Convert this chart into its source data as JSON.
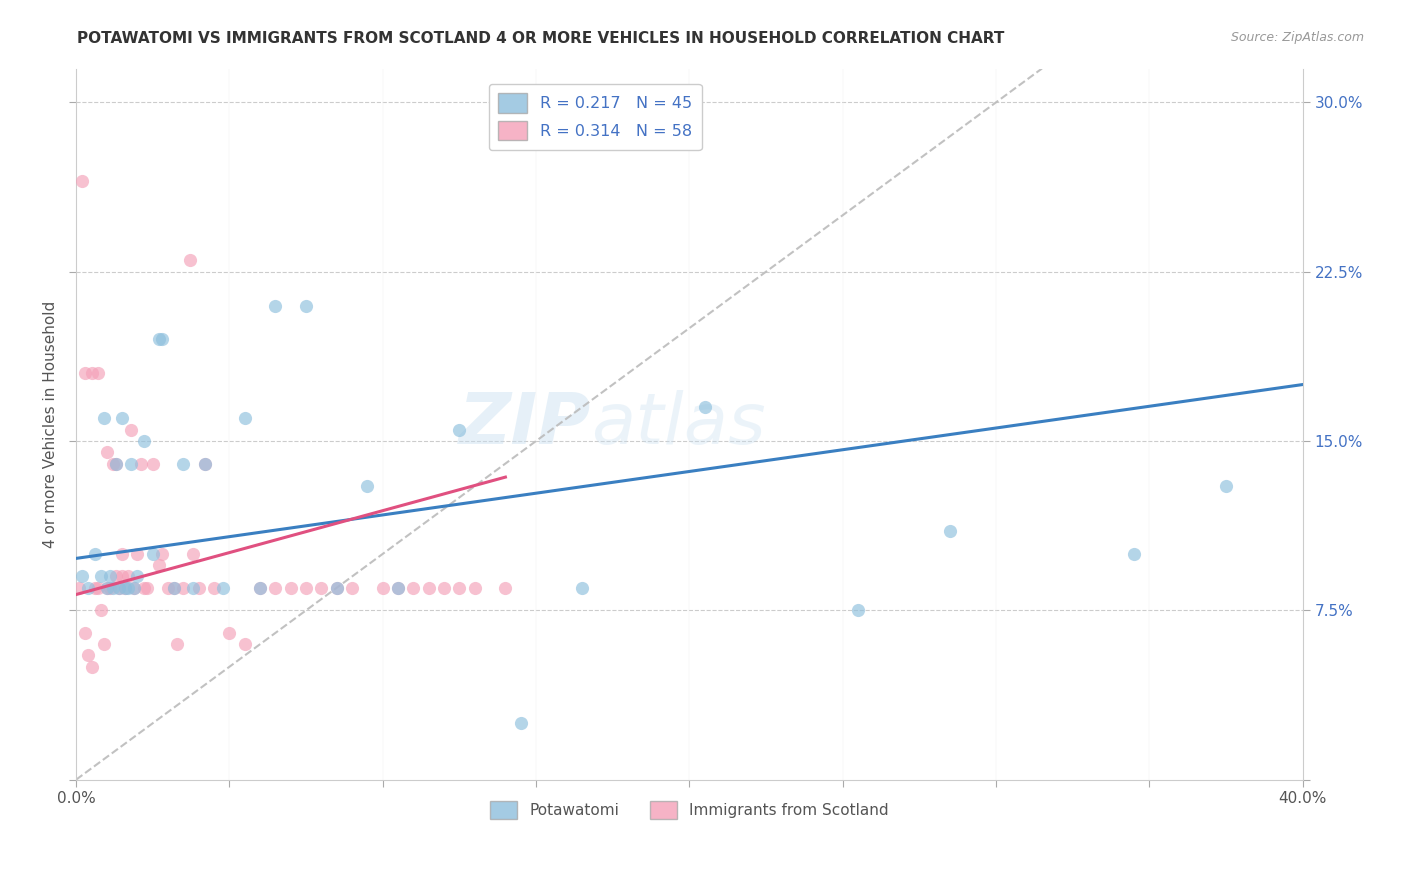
{
  "title": "POTAWATOMI VS IMMIGRANTS FROM SCOTLAND 4 OR MORE VEHICLES IN HOUSEHOLD CORRELATION CHART",
  "source": "Source: ZipAtlas.com",
  "ylabel": "4 or more Vehicles in Household",
  "xlim": [
    0.0,
    0.4
  ],
  "ylim": [
    0.0,
    0.315
  ],
  "color_blue": "#8dbfdd",
  "color_pink": "#f4a0b8",
  "color_trend_blue": "#3a7fc1",
  "color_trend_pink": "#e05080",
  "scatter_alpha": 0.65,
  "scatter_size": 90,
  "blue_x": [
    0.002,
    0.004,
    0.006,
    0.008,
    0.009,
    0.01,
    0.011,
    0.012,
    0.013,
    0.014,
    0.015,
    0.016,
    0.017,
    0.018,
    0.019,
    0.02,
    0.022,
    0.025,
    0.027,
    0.028,
    0.032,
    0.035,
    0.038,
    0.042,
    0.048,
    0.055,
    0.06,
    0.065,
    0.075,
    0.085,
    0.095,
    0.105,
    0.125,
    0.145,
    0.165,
    0.205,
    0.255,
    0.285,
    0.345,
    0.375
  ],
  "blue_y": [
    0.09,
    0.085,
    0.1,
    0.09,
    0.16,
    0.085,
    0.09,
    0.085,
    0.14,
    0.085,
    0.16,
    0.085,
    0.085,
    0.14,
    0.085,
    0.09,
    0.15,
    0.1,
    0.195,
    0.195,
    0.085,
    0.14,
    0.085,
    0.14,
    0.085,
    0.16,
    0.085,
    0.21,
    0.21,
    0.085,
    0.13,
    0.085,
    0.155,
    0.025,
    0.085,
    0.165,
    0.075,
    0.11,
    0.1,
    0.13
  ],
  "pink_x": [
    0.001,
    0.002,
    0.003,
    0.003,
    0.004,
    0.005,
    0.005,
    0.006,
    0.007,
    0.007,
    0.008,
    0.009,
    0.01,
    0.01,
    0.011,
    0.012,
    0.013,
    0.013,
    0.014,
    0.015,
    0.015,
    0.016,
    0.017,
    0.018,
    0.019,
    0.02,
    0.021,
    0.022,
    0.023,
    0.025,
    0.027,
    0.028,
    0.03,
    0.032,
    0.033,
    0.035,
    0.037,
    0.038,
    0.04,
    0.042,
    0.045,
    0.05,
    0.055,
    0.06,
    0.065,
    0.07,
    0.075,
    0.08,
    0.085,
    0.09,
    0.1,
    0.105,
    0.11,
    0.115,
    0.12,
    0.125,
    0.13,
    0.14
  ],
  "pink_y": [
    0.085,
    0.265,
    0.065,
    0.18,
    0.055,
    0.05,
    0.18,
    0.085,
    0.085,
    0.18,
    0.075,
    0.06,
    0.145,
    0.085,
    0.085,
    0.14,
    0.09,
    0.14,
    0.085,
    0.09,
    0.1,
    0.085,
    0.09,
    0.155,
    0.085,
    0.1,
    0.14,
    0.085,
    0.085,
    0.14,
    0.095,
    0.1,
    0.085,
    0.085,
    0.06,
    0.085,
    0.23,
    0.1,
    0.085,
    0.14,
    0.085,
    0.065,
    0.06,
    0.085,
    0.085,
    0.085,
    0.085,
    0.085,
    0.085,
    0.085,
    0.085,
    0.085,
    0.085,
    0.085,
    0.085,
    0.085,
    0.085,
    0.085
  ],
  "blue_trend_x": [
    0.0,
    0.4
  ],
  "blue_trend_y": [
    0.098,
    0.175
  ],
  "pink_trend_x": [
    0.0,
    0.14
  ],
  "pink_trend_y": [
    0.082,
    0.134
  ],
  "ref_line_x": [
    0.0,
    0.315
  ],
  "ref_line_y": [
    0.0,
    0.315
  ],
  "watermark": "ZIPatlas",
  "background_color": "#ffffff",
  "grid_color": "#cccccc"
}
